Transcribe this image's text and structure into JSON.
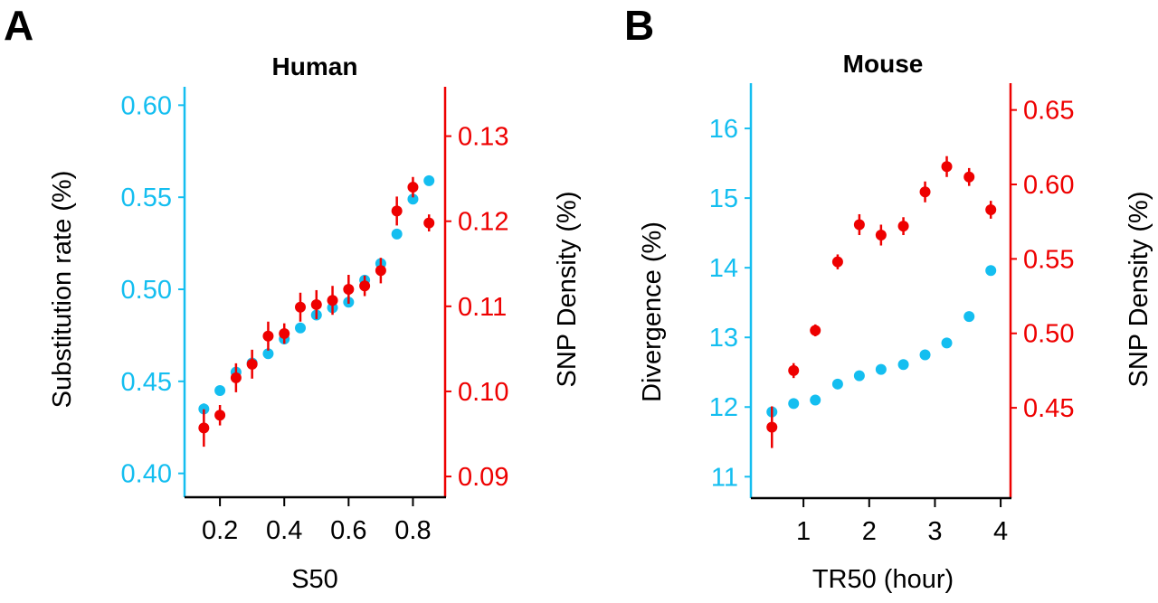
{
  "colors": {
    "blue": "#14BEF0",
    "red": "#EE0000",
    "axis": "#000000"
  },
  "chart_data": [
    {
      "panel": "A",
      "type": "scatter",
      "title": "Human",
      "xlabel": "S50",
      "ylabel_left": "Substitution rate (%)",
      "ylabel_right": "SNP Density (%)",
      "xlim": [
        0.09,
        0.9
      ],
      "xticks": [
        0.2,
        0.4,
        0.6,
        0.8
      ],
      "xtick_labels": [
        "0.2",
        "0.4",
        "0.6",
        "0.8"
      ],
      "ylim_left": [
        0.39,
        0.61
      ],
      "yticks_left": [
        0.4,
        0.45,
        0.5,
        0.55,
        0.6
      ],
      "ytick_labels_left": [
        "0.40",
        "0.45",
        "0.50",
        "0.55",
        "0.60"
      ],
      "ylim_right": [
        0.0882,
        0.1358
      ],
      "yticks_right": [
        0.09,
        0.1,
        0.11,
        0.12,
        0.13
      ],
      "ytick_labels_right": [
        "0.09",
        "0.10",
        "0.11",
        "0.12",
        "0.13"
      ],
      "grid": false,
      "series": [
        {
          "name": "Substitution rate",
          "axis": "left",
          "color": "blue",
          "x": [
            0.15,
            0.2,
            0.25,
            0.3,
            0.35,
            0.4,
            0.45,
            0.5,
            0.55,
            0.6,
            0.65,
            0.7,
            0.75,
            0.8,
            0.85
          ],
          "y": [
            0.435,
            0.445,
            0.455,
            0.46,
            0.465,
            0.473,
            0.479,
            0.486,
            0.49,
            0.493,
            0.505,
            0.514,
            0.53,
            0.549,
            0.559
          ],
          "err": [
            0.003,
            0.002,
            0.002,
            0.002,
            0.002,
            0.002,
            0.002,
            0.002,
            0.002,
            0.002,
            0.002,
            0.002,
            0.002,
            0.002,
            0.002
          ]
        },
        {
          "name": "SNP Density",
          "axis": "right",
          "color": "red",
          "x": [
            0.15,
            0.2,
            0.25,
            0.3,
            0.35,
            0.4,
            0.45,
            0.5,
            0.55,
            0.6,
            0.65,
            0.7,
            0.75,
            0.8,
            0.85
          ],
          "y": [
            0.0957,
            0.0972,
            0.1016,
            0.1032,
            0.1065,
            0.1068,
            0.1099,
            0.1102,
            0.1107,
            0.112,
            0.1124,
            0.1142,
            0.1212,
            0.124,
            0.1198
          ],
          "err": [
            0.0022,
            0.0012,
            0.0017,
            0.0017,
            0.0017,
            0.0012,
            0.0017,
            0.0017,
            0.0017,
            0.0017,
            0.0012,
            0.0015,
            0.0017,
            0.0012,
            0.001
          ]
        }
      ]
    },
    {
      "panel": "B",
      "type": "scatter",
      "title": "Mouse",
      "xlabel": "TR50 (hour)",
      "ylabel_left": "Divergence (%)",
      "ylabel_right": "SNP Density (%)",
      "xlim": [
        0.2,
        4.15
      ],
      "xticks": [
        1,
        2,
        3,
        4
      ],
      "xtick_labels": [
        "1",
        "2",
        "3",
        "4"
      ],
      "ylim_left": [
        10.77,
        16.65
      ],
      "yticks_left": [
        11,
        12,
        13,
        14,
        15,
        16
      ],
      "ytick_labels_left": [
        "11",
        "12",
        "13",
        "14",
        "15",
        "16"
      ],
      "ylim_right": [
        0.393,
        0.668
      ],
      "yticks_right": [
        0.45,
        0.5,
        0.55,
        0.6,
        0.65
      ],
      "ytick_labels_right": [
        "0.45",
        "0.50",
        "0.55",
        "0.60",
        "0.65"
      ],
      "grid": false,
      "series": [
        {
          "name": "Divergence",
          "axis": "left",
          "color": "blue",
          "x": [
            0.52,
            0.85,
            1.18,
            1.52,
            1.85,
            2.18,
            2.52,
            2.85,
            3.18,
            3.52,
            3.85
          ],
          "y": [
            11.93,
            12.05,
            12.1,
            12.33,
            12.45,
            12.54,
            12.61,
            12.75,
            12.92,
            13.3,
            13.96
          ],
          "err": [
            0.02,
            0.02,
            0.02,
            0.02,
            0.02,
            0.02,
            0.02,
            0.02,
            0.02,
            0.02,
            0.02
          ]
        },
        {
          "name": "SNP Density",
          "axis": "right",
          "color": "red",
          "x": [
            0.52,
            0.85,
            1.18,
            1.52,
            1.85,
            2.18,
            2.52,
            2.85,
            3.18,
            3.52,
            3.85
          ],
          "y": [
            0.437,
            0.475,
            0.502,
            0.548,
            0.573,
            0.566,
            0.572,
            0.595,
            0.612,
            0.605,
            0.583
          ],
          "err": [
            0.014,
            0.005,
            0.004,
            0.005,
            0.007,
            0.007,
            0.006,
            0.007,
            0.007,
            0.006,
            0.006
          ]
        }
      ]
    }
  ]
}
